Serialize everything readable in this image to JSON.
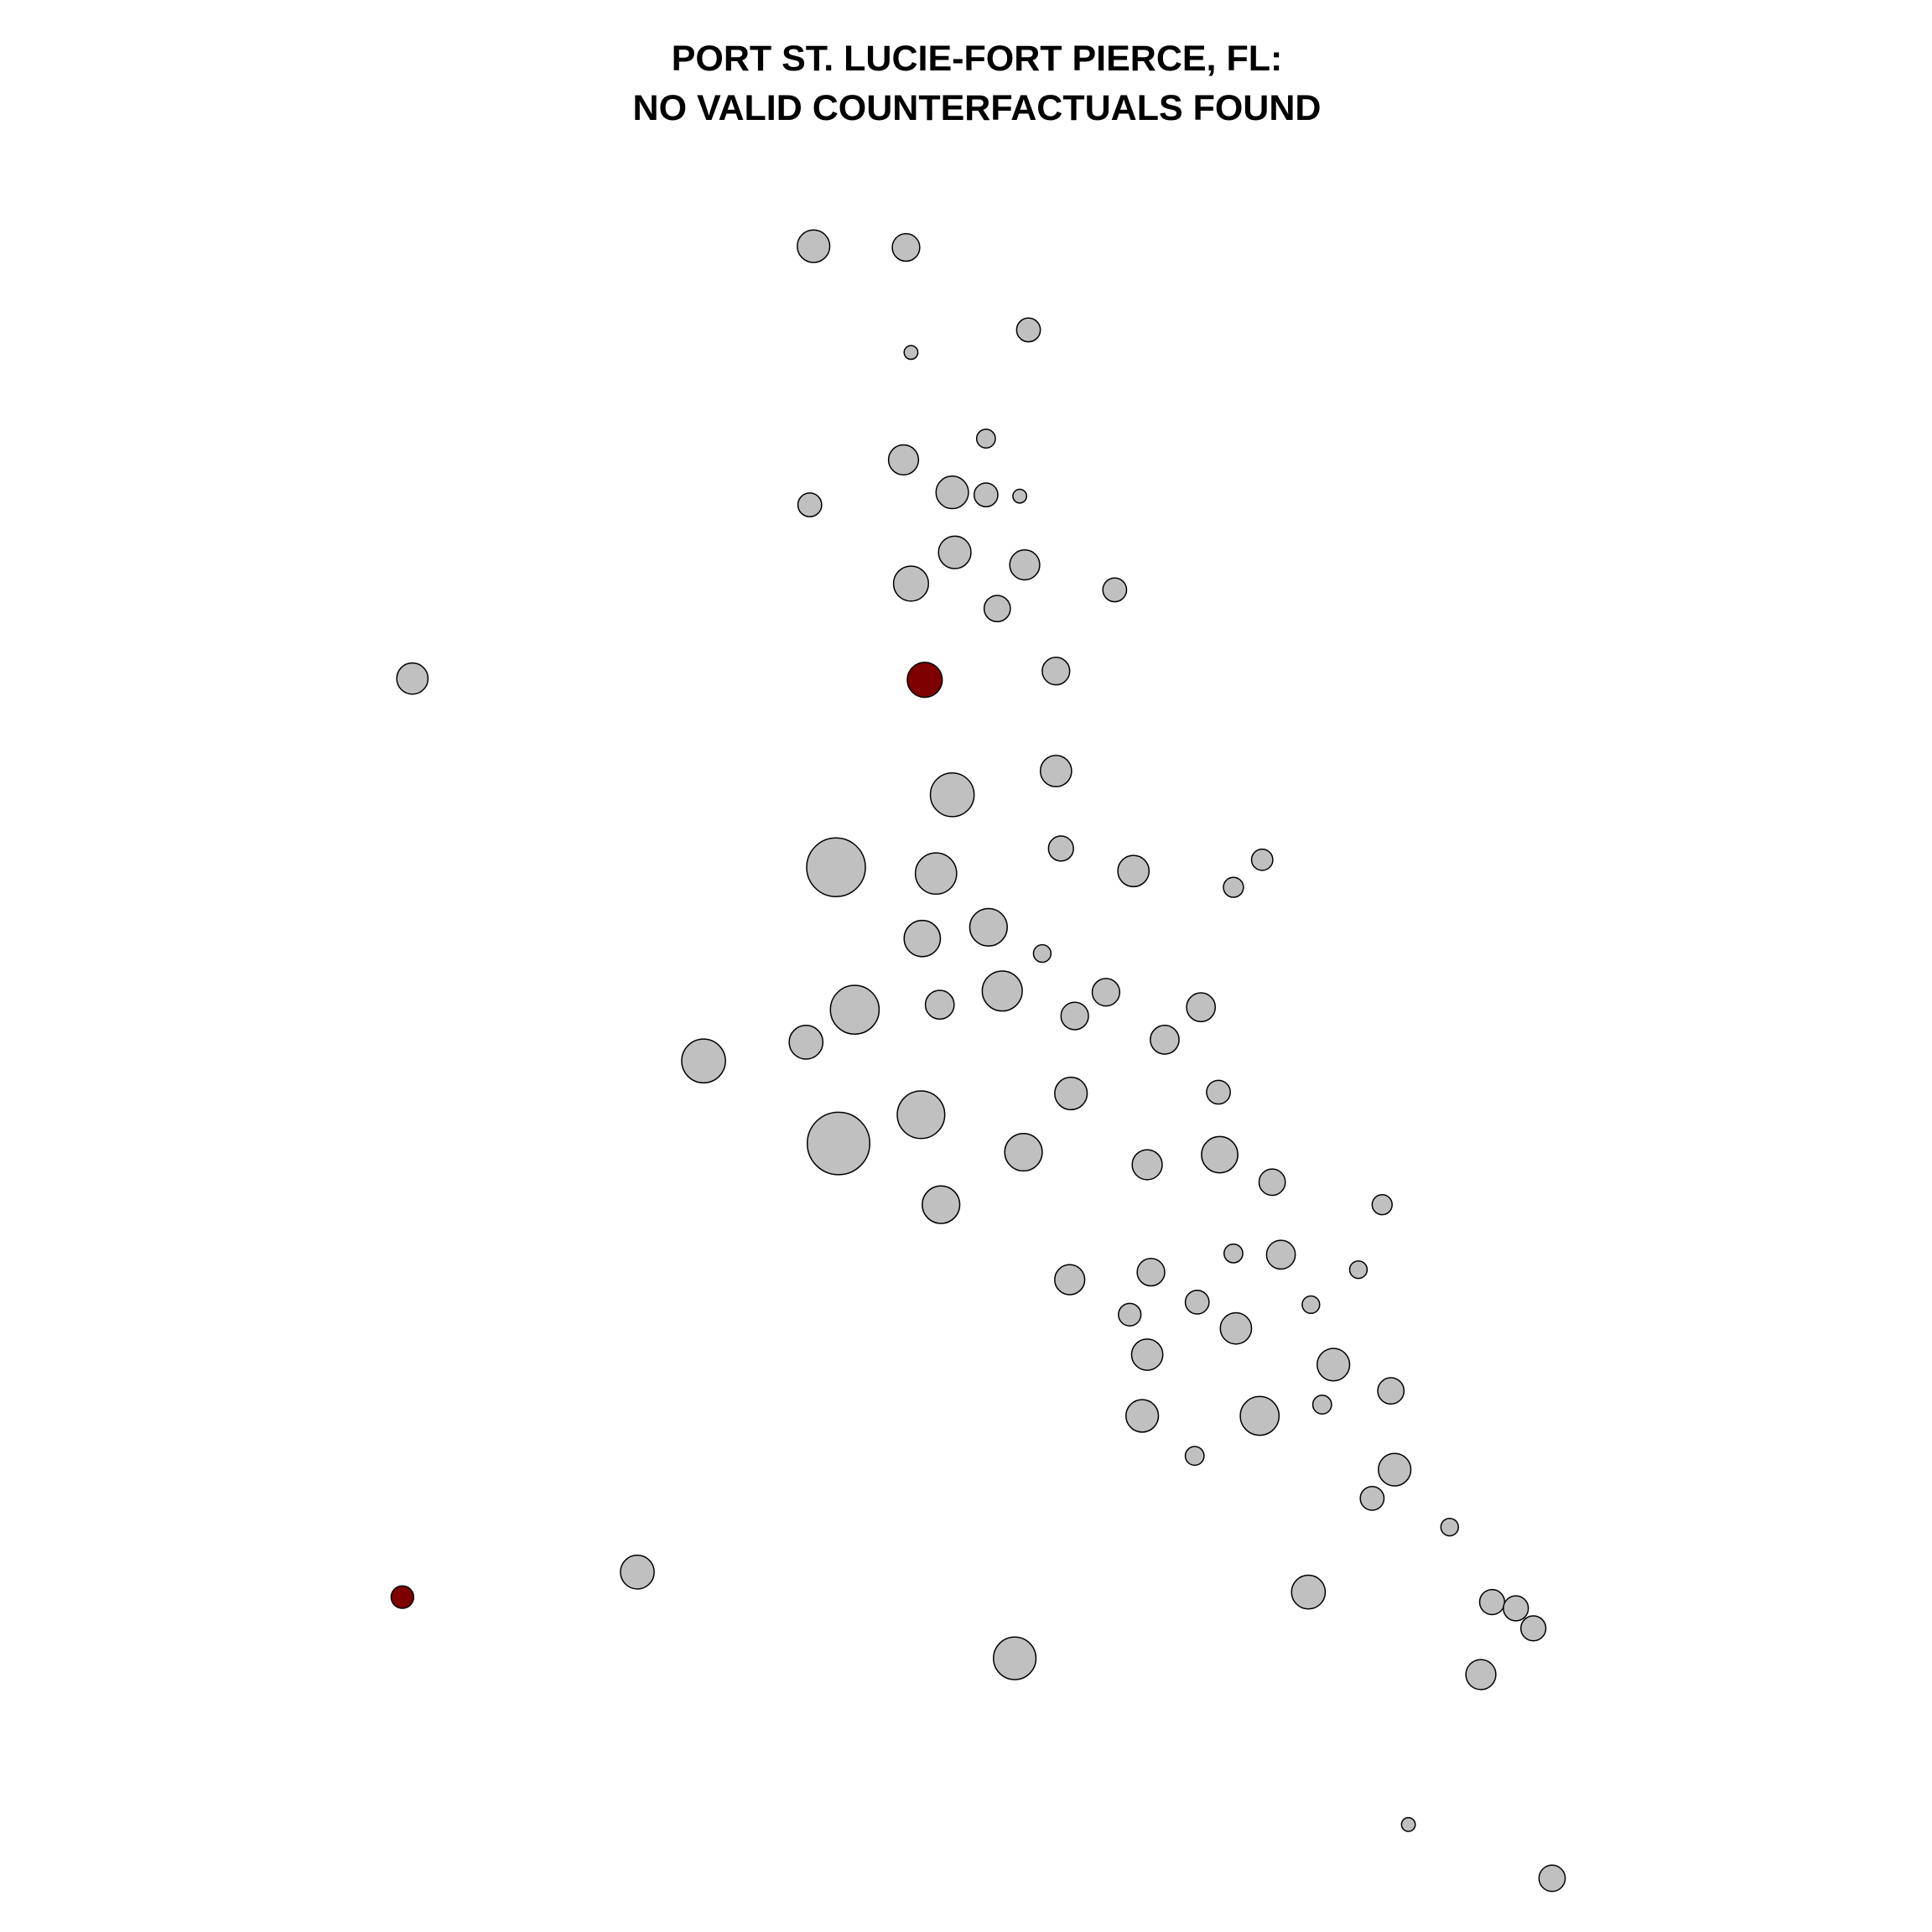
{
  "chart_data": {
    "type": "scatter",
    "title": "PORT ST. LUCIE-FORT PIERCE, FL:",
    "subtitle": "NO VALID COUNTERFACTUALS FOUND",
    "xlim": [
      0,
      1546
    ],
    "ylim": [
      1546,
      0
    ],
    "series": [
      {
        "color": "#c0c0c0",
        "x": [
          651,
          725,
          823,
          729,
          789,
          723,
          762,
          789,
          816,
          648,
          764,
          820,
          729,
          892,
          798,
          330,
          845,
          845,
          762,
          669,
          749,
          849,
          907,
          1010,
          987,
          738,
          791,
          834,
          684,
          752,
          802,
          885,
          860,
          961,
          932,
          645,
          563,
          857,
          975,
          671,
          737,
          819,
          918,
          976,
          1018,
          1106,
          753,
          987,
          1025,
          1087,
          856,
          921,
          958,
          904,
          1049,
          989,
          918,
          1067,
          1113,
          914,
          1008,
          1058,
          956,
          1116,
          1098,
          1160,
          510,
          1047,
          1194,
          1213,
          1227,
          812,
          1185,
          1127,
          1242
        ],
        "y": [
          197,
          198,
          264,
          282,
          351,
          368,
          394,
          396,
          397,
          404,
          442,
          452,
          467,
          472,
          487,
          543,
          537,
          617,
          636,
          694,
          699,
          679,
          697,
          688,
          710,
          751,
          742,
          763,
          808,
          804,
          793,
          794,
          813,
          806,
          832,
          834,
          849,
          875,
          874,
          915,
          892,
          922,
          932,
          924,
          946,
          964,
          964,
          1003,
          1004,
          1016,
          1024,
          1018,
          1042,
          1052,
          1044,
          1063,
          1084,
          1092,
          1113,
          1133,
          1133,
          1124,
          1165,
          1176,
          1199,
          1222,
          1258,
          1274,
          1282,
          1287,
          1303,
          1327,
          1340,
          1460,
          1503
        ],
        "size": [
          13,
          11,
          9.5,
          5.5,
          7.5,
          12,
          13,
          9.5,
          5.5,
          9.5,
          13,
          12,
          14,
          9.5,
          10.5,
          12.5,
          11,
          12.5,
          17.5,
          23.5,
          16.5,
          10,
          12.5,
          8.5,
          8,
          14.5,
          15,
          7,
          19.5,
          11.5,
          16,
          11,
          11,
          11.5,
          11.5,
          13.5,
          17.5,
          13,
          9.5,
          25,
          19,
          15,
          12,
          14.5,
          10.5,
          8,
          15,
          7.5,
          11.5,
          7,
          12,
          11,
          9.5,
          9,
          7,
          12.5,
          12.5,
          13,
          10.5,
          13,
          15.5,
          7.5,
          7.5,
          13,
          9.5,
          7,
          13.5,
          13.5,
          10,
          10,
          10,
          17,
          12,
          5.5,
          10.5
        ]
      },
      {
        "color": "#7f0000",
        "x": [
          740,
          322
        ],
        "y": [
          544,
          1278
        ],
        "size": [
          14,
          9
        ]
      }
    ]
  }
}
